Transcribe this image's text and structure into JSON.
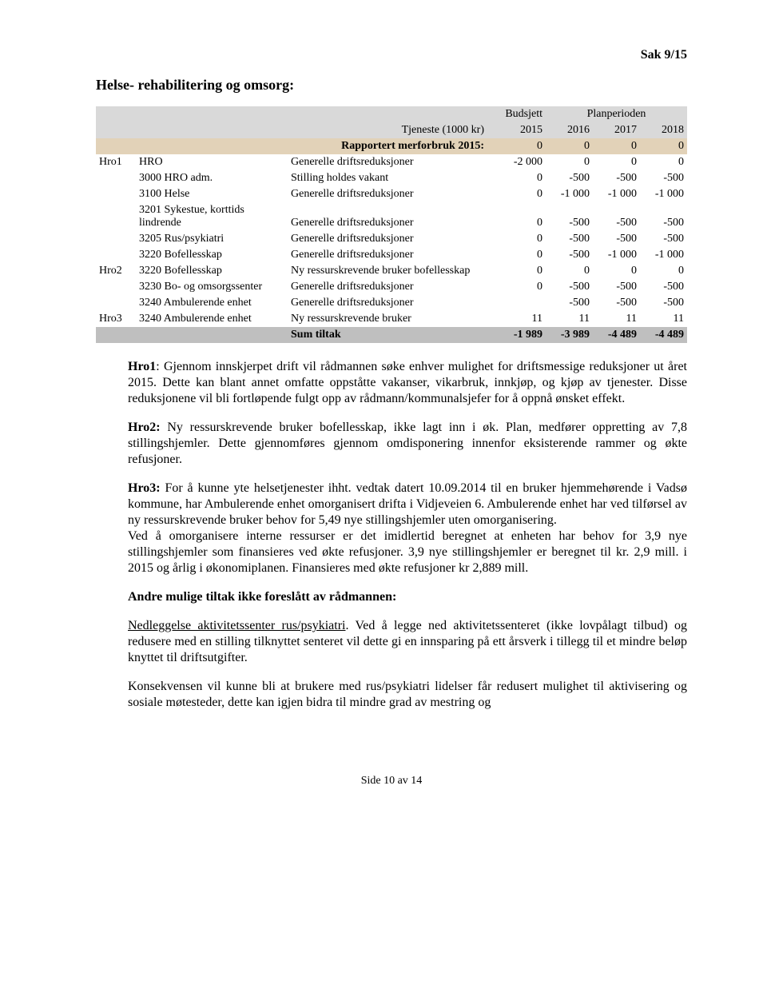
{
  "sak": "Sak 9/15",
  "title": "Helse- rehabilitering og omsorg:",
  "table": {
    "header_top": [
      "",
      "",
      "",
      "Budsjett",
      "Planperioden",
      "",
      ""
    ],
    "header": [
      "",
      "",
      "Tjeneste (1000 kr)",
      "2015",
      "2016",
      "2017",
      "2018"
    ],
    "rapp": [
      "",
      "",
      "Rapportert merforbruk 2015:",
      "0",
      "0",
      "0",
      "0"
    ],
    "rows": [
      [
        "Hro1",
        "HRO",
        "Generelle driftsreduksjoner",
        "-2 000",
        "0",
        "0",
        "0"
      ],
      [
        "",
        "3000 HRO adm.",
        "Stilling holdes vakant",
        "0",
        "-500",
        "-500",
        "-500"
      ],
      [
        "",
        "3100 Helse",
        "Generelle driftsreduksjoner",
        "0",
        "-1 000",
        "-1 000",
        "-1 000"
      ],
      [
        "",
        "3201 Sykestue, korttids lindrende",
        "Generelle driftsreduksjoner",
        "0",
        "-500",
        "-500",
        "-500"
      ],
      [
        "",
        "3205 Rus/psykiatri",
        "Generelle driftsreduksjoner",
        "0",
        "-500",
        "-500",
        "-500"
      ],
      [
        "",
        "3220 Bofellesskap",
        "Generelle driftsreduksjoner",
        "0",
        "-500",
        "-1 000",
        "-1 000"
      ],
      [
        "Hro2",
        "3220 Bofellesskap",
        "Ny ressurskrevende bruker bofellesskap",
        "0",
        "0",
        "0",
        "0"
      ],
      [
        "",
        "3230 Bo- og omsorgssenter",
        "Generelle driftsreduksjoner",
        "0",
        "-500",
        "-500",
        "-500"
      ],
      [
        "",
        "3240 Ambulerende enhet",
        "Generelle driftsreduksjoner",
        "",
        "-500",
        "-500",
        "-500"
      ],
      [
        "Hro3",
        "3240 Ambulerende enhet",
        "Ny ressurskrevende bruker",
        "11",
        "11",
        "11",
        "11"
      ]
    ],
    "sum": [
      "",
      "",
      "Sum tiltak",
      "-1 989",
      "-3 989",
      "-4 489",
      "-4 489"
    ]
  },
  "paras": {
    "p1_lead": "Hro1",
    "p1_body": ": Gjennom innskjerpet drift vil rådmannen søke enhver mulighet for driftsmessige reduksjoner ut året 2015. Dette kan blant annet omfatte oppståtte vakanser, vikarbruk, innkjøp, og kjøp av tjenester. Disse reduksjonene vil bli fortløpende fulgt opp av rådmann/kommunalsjefer for å oppnå ønsket effekt.",
    "p2_lead": "Hro2:",
    "p2_body": " Ny ressurskrevende bruker bofellesskap, ikke lagt inn i øk. Plan, medfører oppretting av 7,8 stillingshjemler. Dette gjennomføres gjennom omdisponering innenfor eksisterende rammer og økte refusjoner.",
    "p3_lead": "Hro3:",
    "p3_body": " For å kunne yte helsetjenester ihht. vedtak datert 10.09.2014 til en bruker hjemmehørende i Vadsø kommune, har Ambulerende enhet omorganisert drifta i Vidjeveien 6. Ambulerende enhet har ved tilførsel av ny ressurskrevende bruker behov for 5,49 nye stillingshjemler uten omorganisering.",
    "p3b_body": "Ved å omorganisere interne ressurser er det imidlertid beregnet at enheten har behov for 3,9 nye stillingshjemler som finansieres ved økte refusjoner. 3,9 nye stillingshjemler er beregnet til kr. 2,9 mill. i 2015 og årlig i økonomiplanen. Finansieres med økte refusjoner kr 2,889 mill.",
    "p4_lead": "Andre mulige tiltak ikke foreslått av rådmannen:",
    "p5_lead": "Nedleggelse aktivitetssenter rus/psykiatri",
    "p5_body": ". Ved å legge ned aktivitetssenteret (ikke lovpålagt tilbud)  og redusere med en stilling tilknyttet senteret vil dette gi en innsparing på ett årsverk i tillegg til et mindre beløp knyttet til driftsutgifter.",
    "p6_body": "Konsekvensen vil kunne bli at brukere med rus/psykiatri lidelser får redusert mulighet til aktivisering og sosiale møtesteder, dette kan igjen bidra til mindre grad av mestring og"
  },
  "footer": "Side 10 av 14"
}
